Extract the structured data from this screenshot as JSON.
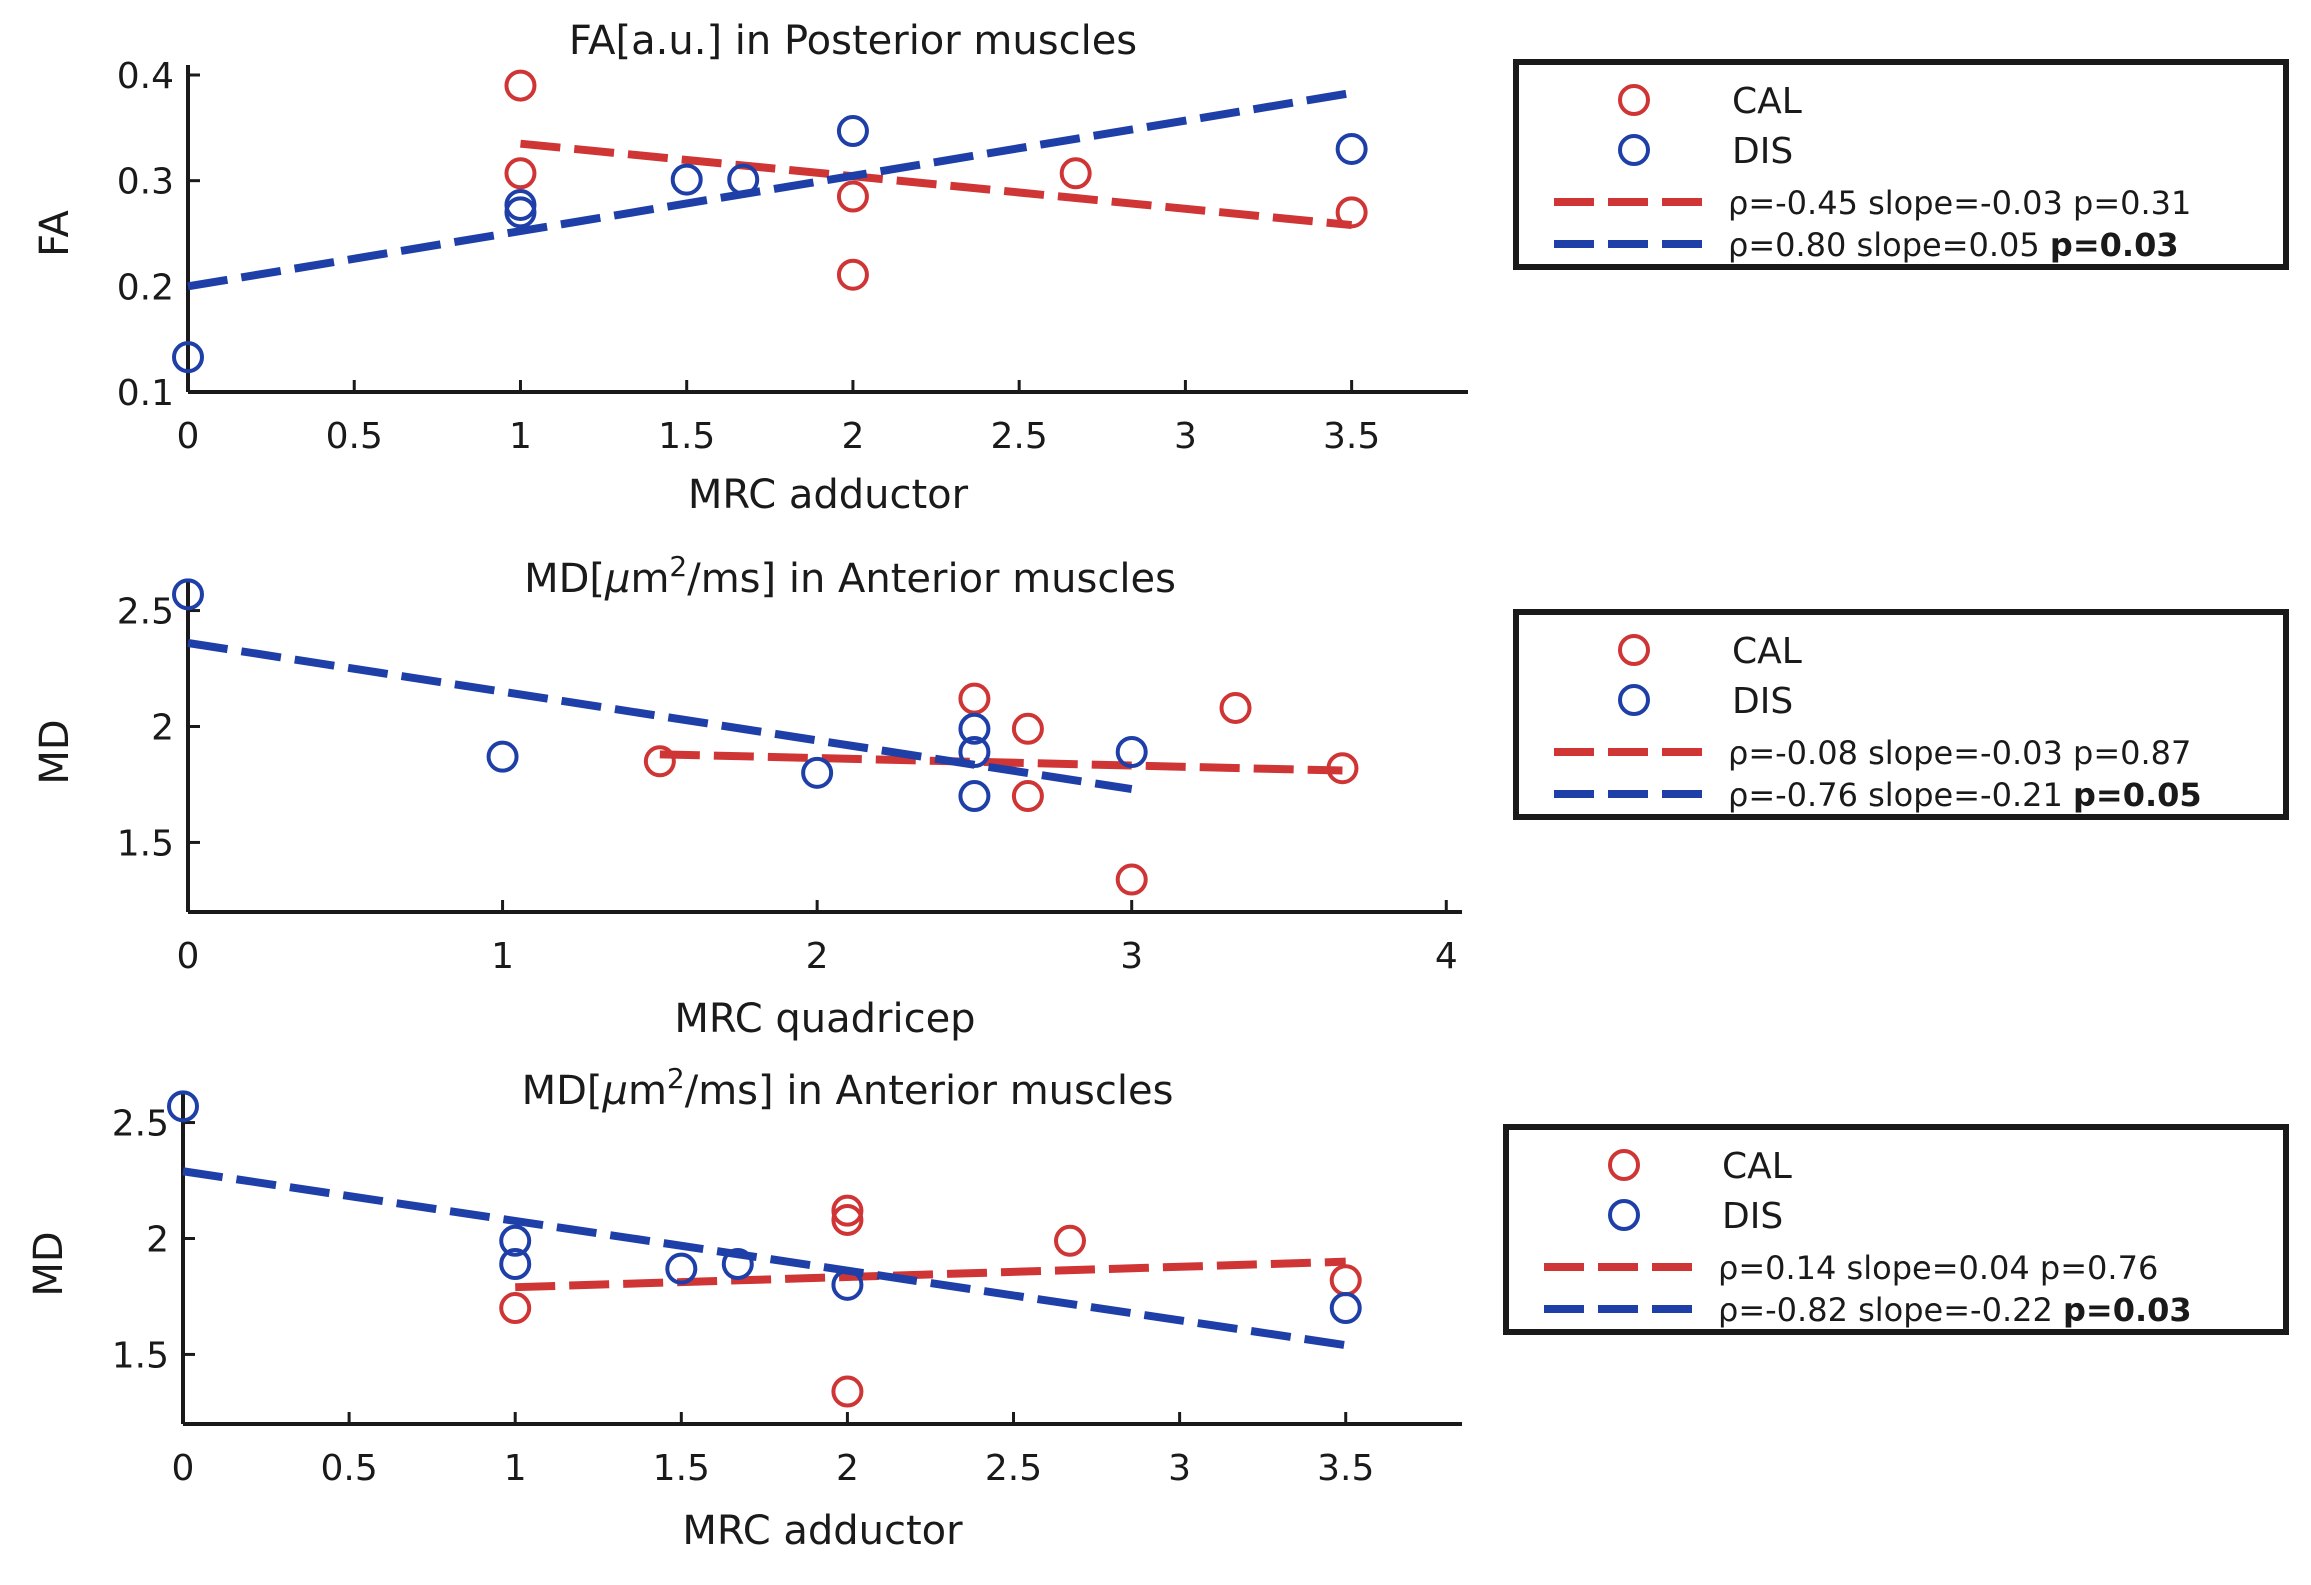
{
  "colors": {
    "CAL": "#d03535",
    "DIS": "#1f3fa8",
    "axis": "#1a1a1a"
  },
  "chart_data": [
    {
      "type": "scatter",
      "title": "FA[a.u.] in Posterior muscles",
      "xlabel": "MRC adductor",
      "ylabel": "FA",
      "xlim": [
        0,
        3.85
      ],
      "ylim": [
        0.1,
        0.4
      ],
      "xticks": [
        0,
        0.5,
        1,
        1.5,
        2,
        2.5,
        3,
        3.5
      ],
      "xtick_labels": [
        "0",
        "0.5",
        "1",
        "1.5",
        "2",
        "2.5",
        "3",
        "3.5"
      ],
      "yticks": [
        0.1,
        0.2,
        0.3,
        0.4
      ],
      "ytick_labels": [
        "0.1",
        "0.2",
        "0.3",
        "0.4"
      ],
      "series": [
        {
          "name": "CAL",
          "x": [
            1,
            1,
            2,
            2,
            2.67,
            3.5
          ],
          "y": [
            0.39,
            0.307,
            0.285,
            0.211,
            0.307,
            0.27
          ]
        },
        {
          "name": "DIS",
          "x": [
            0,
            1,
            1,
            1.5,
            1.67,
            2,
            3.5
          ],
          "y": [
            0.133,
            0.277,
            0.27,
            0.301,
            0.301,
            0.347,
            0.33
          ]
        }
      ],
      "fits": [
        {
          "name": "CAL",
          "x": [
            1,
            3.5
          ],
          "y": [
            0.335,
            0.258
          ]
        },
        {
          "name": "DIS",
          "x": [
            0,
            3.5
          ],
          "y": [
            0.2,
            0.383
          ]
        }
      ],
      "legend": {
        "entries": [
          "CAL",
          "DIS"
        ],
        "stats": [
          {
            "text": "ρ=-0.45 slope=-0.03 p=0.31",
            "bold": ""
          },
          {
            "text": "ρ=0.80 slope=0.05 ",
            "bold": "p=0.03"
          }
        ]
      }
    },
    {
      "type": "scatter",
      "title_pre": "MD[",
      "title_mu": "μ",
      "title_mid": "m",
      "title_sup": "2",
      "title_post": "/ms] in Anterior muscles",
      "xlabel": "MRC quadricep",
      "ylabel": "MD",
      "xlim": [
        0,
        4.05
      ],
      "ylim": [
        1.2,
        2.58
      ],
      "xticks": [
        0,
        1,
        2,
        3,
        4
      ],
      "xtick_labels": [
        "0",
        "1",
        "2",
        "3",
        "4"
      ],
      "yticks": [
        1.5,
        2,
        2.5
      ],
      "ytick_labels": [
        "1.5",
        "2",
        "2.5"
      ],
      "series": [
        {
          "name": "CAL",
          "x": [
            1.5,
            2.5,
            2.67,
            2.67,
            3,
            3.33,
            3.67
          ],
          "y": [
            1.85,
            2.12,
            1.99,
            1.7,
            1.34,
            2.08,
            1.82
          ]
        },
        {
          "name": "DIS",
          "x": [
            0,
            1,
            2,
            2.5,
            2.5,
            2.5,
            3
          ],
          "y": [
            2.57,
            1.87,
            1.8,
            1.99,
            1.89,
            1.7,
            1.89
          ]
        }
      ],
      "fits": [
        {
          "name": "CAL",
          "x": [
            1.5,
            3.67
          ],
          "y": [
            1.88,
            1.81
          ]
        },
        {
          "name": "DIS",
          "x": [
            0,
            3
          ],
          "y": [
            2.36,
            1.73
          ]
        }
      ],
      "legend": {
        "entries": [
          "CAL",
          "DIS"
        ],
        "stats": [
          {
            "text": "ρ=-0.08 slope=-0.03 p=0.87",
            "bold": ""
          },
          {
            "text": "ρ=-0.76 slope=-0.21 ",
            "bold": "p=0.05"
          }
        ]
      }
    },
    {
      "type": "scatter",
      "title_pre": "MD[",
      "title_mu": "μ",
      "title_mid": "m",
      "title_sup": "2",
      "title_post": "/ms] in Anterior muscles",
      "xlabel": "MRC adductor",
      "ylabel": "MD",
      "xlim": [
        0,
        3.85
      ],
      "ylim": [
        1.2,
        2.58
      ],
      "xticks": [
        0,
        0.5,
        1,
        1.5,
        2,
        2.5,
        3,
        3.5
      ],
      "xtick_labels": [
        "0",
        "0.5",
        "1",
        "1.5",
        "2",
        "2.5",
        "3",
        "3.5"
      ],
      "yticks": [
        1.5,
        2,
        2.5
      ],
      "ytick_labels": [
        "1.5",
        "2",
        "2.5"
      ],
      "series": [
        {
          "name": "CAL",
          "x": [
            1,
            2,
            2,
            2,
            2.67,
            3.5
          ],
          "y": [
            1.7,
            2.12,
            2.08,
            1.34,
            1.99,
            1.82
          ]
        },
        {
          "name": "DIS",
          "x": [
            0,
            1,
            1,
            1.5,
            1.67,
            2,
            3.5
          ],
          "y": [
            2.57,
            1.99,
            1.89,
            1.87,
            1.89,
            1.8,
            1.7
          ]
        }
      ],
      "fits": [
        {
          "name": "CAL",
          "x": [
            1,
            3.5
          ],
          "y": [
            1.79,
            1.9
          ]
        },
        {
          "name": "DIS",
          "x": [
            0,
            3.5
          ],
          "y": [
            2.29,
            1.54
          ]
        }
      ],
      "legend": {
        "entries": [
          "CAL",
          "DIS"
        ],
        "stats": [
          {
            "text": "ρ=0.14 slope=0.04 p=0.76",
            "bold": ""
          },
          {
            "text": "ρ=-0.82 slope=-0.22 ",
            "bold": "p=0.03"
          }
        ]
      }
    }
  ]
}
